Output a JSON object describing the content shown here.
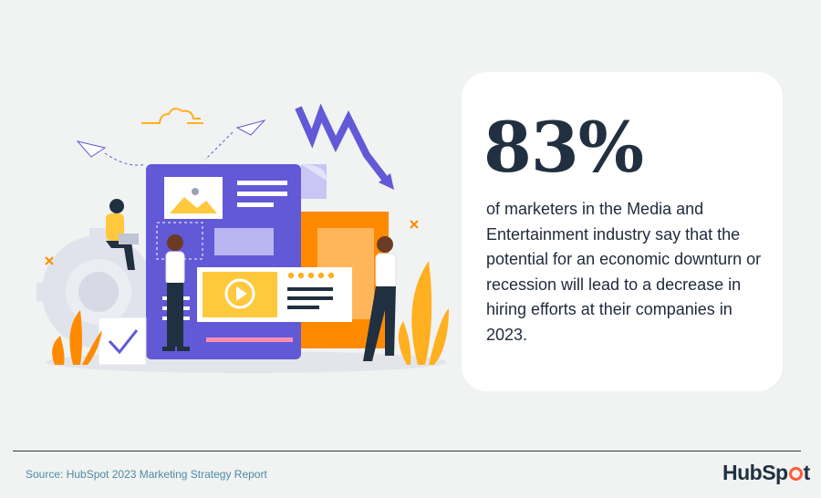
{
  "stat": {
    "value": "83%"
  },
  "description": "of marketers in the Media and Entertainment industry say that the potential for an economic downturn or recession will lead to a decrease in hiring efforts at their companies in 2023.",
  "source": "Source: HubSpot 2023 Marketing Strategy Report",
  "logo": {
    "text_before": "HubSp",
    "text_after": "t"
  },
  "colors": {
    "background": "#f1f2f2",
    "card": "#ffffff",
    "navy": "#203040",
    "purple": "#6159d6",
    "orange": "#ff8a00",
    "yellow": "#ffc83d",
    "hubspot_orange": "#ff5c35"
  },
  "illustration": {
    "icons": [
      "downtrend-arrow-icon",
      "paper-plane-icon",
      "cloud-icon",
      "video-play-icon",
      "image-icon",
      "gear-icon",
      "checkbox-icon",
      "star-rating-icon",
      "plant-icon"
    ]
  }
}
